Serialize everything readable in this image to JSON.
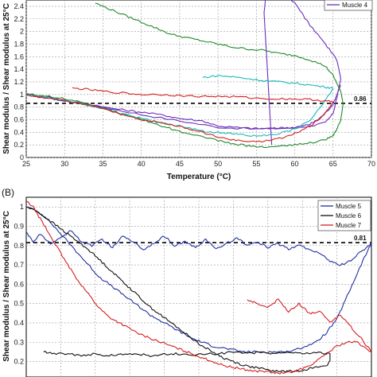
{
  "chart_data": [
    {
      "type": "line",
      "panel_label": "",
      "xlabel": "Temperature (°C)",
      "ylabel": "Shear modulus / Shear modulus at 25°C",
      "xlim": [
        25,
        70
      ],
      "ylim": [
        0,
        2.5
      ],
      "xticks": [
        "25",
        "30",
        "35",
        "40",
        "45",
        "50",
        "55",
        "60",
        "65",
        "70"
      ],
      "yticks": [
        "0",
        "0.2",
        "0.4",
        "0.6",
        "0.8",
        "1",
        "1.2",
        "1.4",
        "1.6",
        "1.8",
        "2",
        "2.2",
        "2.4"
      ],
      "grid": true,
      "reference_line": {
        "y": 0.86,
        "label": "0.86"
      },
      "legend_visible": [
        "Muscle 4"
      ],
      "series": [
        {
          "name": "",
          "color": "#6a2eb8",
          "x": [
            25,
            30,
            35,
            40,
            45,
            50,
            55,
            60,
            62,
            64,
            65,
            65.5,
            66,
            65.5,
            64,
            62,
            60,
            58,
            56.5,
            56,
            57
          ],
          "y": [
            1.0,
            0.9,
            0.8,
            0.68,
            0.58,
            0.48,
            0.45,
            0.47,
            0.5,
            0.55,
            0.7,
            0.95,
            1.25,
            1.55,
            1.8,
            2.1,
            2.45,
            2.7,
            2.9,
            2.3,
            0.2
          ]
        },
        {
          "name": "Muscle 4",
          "color": "#6a2eb8",
          "x": [
            25,
            28,
            30,
            33,
            35,
            38,
            40,
            43,
            45,
            48,
            50,
            53,
            55,
            57,
            58,
            60,
            61,
            62,
            63,
            64,
            65,
            65.5,
            66
          ],
          "y": [
            1.0,
            0.96,
            0.9,
            0.85,
            0.8,
            0.75,
            0.72,
            0.67,
            0.62,
            0.58,
            0.5,
            0.47,
            0.46,
            0.46,
            0.47,
            0.48,
            0.5,
            0.53,
            0.6,
            0.7,
            0.85,
            1.0,
            1.15
          ]
        },
        {
          "name": "",
          "color": "#1f8a2b",
          "x": [
            34,
            36,
            38,
            40,
            42,
            44,
            46,
            48,
            50,
            52,
            54,
            56,
            58,
            60,
            62,
            64,
            65,
            66,
            66.3,
            66,
            65.5,
            65,
            64,
            62,
            60,
            58,
            56,
            54,
            52,
            50,
            48,
            46,
            44,
            42,
            40,
            38,
            36,
            34,
            32,
            30,
            28,
            26,
            25
          ],
          "y": [
            2.45,
            2.35,
            2.25,
            2.15,
            2.05,
            1.95,
            1.9,
            1.85,
            1.8,
            1.75,
            1.72,
            1.7,
            1.65,
            1.62,
            1.55,
            1.45,
            1.3,
            1.05,
            0.85,
            0.6,
            0.45,
            0.35,
            0.28,
            0.23,
            0.2,
            0.18,
            0.17,
            0.18,
            0.22,
            0.27,
            0.32,
            0.38,
            0.45,
            0.52,
            0.6,
            0.68,
            0.75,
            0.82,
            0.88,
            0.93,
            0.97,
            1.0,
            1.0
          ]
        },
        {
          "name": "",
          "color": "#18b8b8",
          "x": [
            48,
            50,
            52,
            54,
            56,
            58,
            60,
            62,
            64,
            65,
            64,
            62,
            60,
            58,
            56,
            54,
            52,
            50,
            48,
            46,
            44,
            42,
            40,
            38,
            36,
            34,
            32,
            30,
            28,
            26,
            25
          ],
          "y": [
            1.27,
            1.3,
            1.28,
            1.25,
            1.22,
            1.2,
            1.18,
            1.15,
            1.12,
            1.1,
            0.9,
            0.6,
            0.45,
            0.38,
            0.35,
            0.35,
            0.37,
            0.4,
            0.42,
            0.47,
            0.52,
            0.56,
            0.62,
            0.68,
            0.74,
            0.8,
            0.86,
            0.9,
            0.95,
            0.98,
            1.0
          ]
        },
        {
          "name": "",
          "color": "#d42020",
          "x": [
            31,
            33,
            35,
            38,
            40,
            43,
            45,
            48,
            50,
            53,
            55,
            58,
            60,
            62,
            64,
            65,
            64,
            62,
            60,
            58,
            56,
            54,
            52,
            50,
            48,
            46,
            44,
            42,
            40,
            38,
            36,
            34,
            32,
            30,
            28,
            26,
            25
          ],
          "y": [
            1.1,
            1.08,
            1.05,
            1.02,
            1.0,
            1.0,
            0.98,
            0.97,
            0.97,
            0.96,
            0.94,
            0.93,
            0.93,
            0.92,
            0.9,
            0.88,
            0.7,
            0.5,
            0.38,
            0.3,
            0.26,
            0.25,
            0.28,
            0.32,
            0.4,
            0.46,
            0.52,
            0.57,
            0.6,
            0.66,
            0.73,
            0.8,
            0.86,
            0.9,
            0.94,
            0.97,
            1.0
          ]
        }
      ]
    },
    {
      "type": "line",
      "panel_label": "(B)",
      "xlabel": "",
      "ylabel": "Shear modulus / Shear modulus at 25°C",
      "xlim": [
        0,
        100
      ],
      "ylim": [
        0.12,
        1.05
      ],
      "yticks": [
        "0.2",
        "0.3",
        "0.4",
        "0.5",
        "0.6",
        "0.7",
        "0.8",
        "0.9",
        "1"
      ],
      "grid": true,
      "reference_line": {
        "y": 0.815,
        "label": "0.81"
      },
      "legend": [
        "Muscle 5",
        "Muscle 6",
        "Muscle 7"
      ],
      "series": [
        {
          "name": "Muscle 5",
          "color": "#2030a0",
          "x": [
            0,
            3,
            6,
            9,
            12,
            15,
            18,
            21,
            24,
            27,
            30,
            33,
            36,
            39,
            42,
            45,
            48,
            51,
            54,
            57,
            60,
            63,
            66,
            69,
            72,
            75,
            78,
            81,
            84,
            87,
            90,
            92,
            94,
            96,
            98,
            100,
            100,
            97,
            94,
            91,
            88,
            85,
            82,
            79,
            76,
            73,
            70,
            67,
            64,
            61,
            58,
            55,
            52,
            49,
            46,
            43,
            40,
            37,
            34,
            31,
            28,
            25,
            22,
            19,
            16,
            13,
            10,
            7,
            4,
            2,
            0
          ],
          "y": [
            1.0,
            0.98,
            0.94,
            0.88,
            0.82,
            0.76,
            0.7,
            0.64,
            0.6,
            0.56,
            0.52,
            0.48,
            0.44,
            0.41,
            0.38,
            0.35,
            0.32,
            0.3,
            0.28,
            0.27,
            0.26,
            0.25,
            0.25,
            0.25,
            0.25,
            0.25,
            0.26,
            0.28,
            0.3,
            0.35,
            0.42,
            0.5,
            0.58,
            0.66,
            0.74,
            0.81,
            0.81,
            0.77,
            0.72,
            0.7,
            0.72,
            0.76,
            0.78,
            0.8,
            0.78,
            0.81,
            0.79,
            0.82,
            0.8,
            0.84,
            0.81,
            0.78,
            0.83,
            0.79,
            0.82,
            0.8,
            0.85,
            0.81,
            0.78,
            0.82,
            0.85,
            0.79,
            0.83,
            0.8,
            0.82,
            0.88,
            0.84,
            0.81,
            0.86,
            0.82,
            0.87
          ]
        },
        {
          "name": "Muscle 6",
          "color": "#111111",
          "x": [
            0,
            3,
            6,
            9,
            12,
            15,
            18,
            21,
            24,
            27,
            30,
            33,
            36,
            39,
            42,
            45,
            48,
            51,
            54,
            57,
            60,
            63,
            66,
            69,
            72,
            75,
            78,
            81,
            84,
            87,
            88,
            88,
            84,
            80,
            76,
            72,
            68,
            64,
            60,
            56,
            52,
            48,
            44,
            40,
            36,
            32,
            28,
            24,
            20,
            16,
            12,
            8,
            5
          ],
          "y": [
            1.0,
            0.98,
            0.94,
            0.9,
            0.86,
            0.82,
            0.78,
            0.73,
            0.68,
            0.63,
            0.58,
            0.53,
            0.48,
            0.44,
            0.4,
            0.36,
            0.32,
            0.28,
            0.25,
            0.22,
            0.2,
            0.18,
            0.17,
            0.16,
            0.15,
            0.15,
            0.15,
            0.16,
            0.17,
            0.18,
            0.2,
            0.24,
            0.25,
            0.24,
            0.25,
            0.24,
            0.25,
            0.24,
            0.25,
            0.24,
            0.24,
            0.23,
            0.24,
            0.24,
            0.23,
            0.24,
            0.24,
            0.23,
            0.24,
            0.23,
            0.24,
            0.24,
            0.25
          ]
        },
        {
          "name": "Muscle 7",
          "color": "#d42020",
          "x": [
            0,
            2,
            4,
            6,
            8,
            10,
            12,
            15,
            18,
            21,
            24,
            27,
            30,
            33,
            36,
            39,
            42,
            45,
            48,
            51,
            54,
            57,
            60,
            63,
            66,
            69,
            72,
            75,
            78,
            81,
            84,
            87,
            90,
            93,
            96,
            98,
            100,
            100,
            97,
            94,
            91,
            88,
            85,
            82,
            79,
            76,
            73,
            70,
            67,
            64
          ],
          "y": [
            1.03,
            1.0,
            0.94,
            0.88,
            0.82,
            0.76,
            0.7,
            0.62,
            0.55,
            0.48,
            0.43,
            0.4,
            0.37,
            0.34,
            0.32,
            0.3,
            0.28,
            0.26,
            0.24,
            0.22,
            0.2,
            0.18,
            0.17,
            0.16,
            0.15,
            0.15,
            0.14,
            0.14,
            0.15,
            0.17,
            0.2,
            0.24,
            0.28,
            0.3,
            0.3,
            0.27,
            0.25,
            0.25,
            0.32,
            0.38,
            0.44,
            0.4,
            0.46,
            0.45,
            0.5,
            0.46,
            0.52,
            0.48,
            0.5,
            0.52
          ]
        }
      ]
    }
  ]
}
